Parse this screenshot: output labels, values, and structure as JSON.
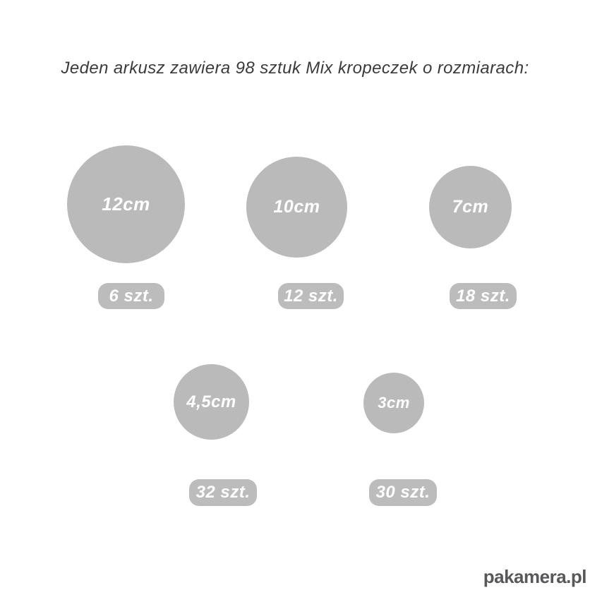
{
  "title": "Jeden arkusz zawiera 98 sztuk Mix kropeczek o rozmiarach:",
  "items": [
    {
      "size": "12cm",
      "count": "6 szt."
    },
    {
      "size": "10cm",
      "count": "12 szt."
    },
    {
      "size": "7cm",
      "count": "18 szt."
    },
    {
      "size": "4,5cm",
      "count": "32 szt."
    },
    {
      "size": "3cm",
      "count": "30 szt."
    }
  ],
  "total_pieces": "98",
  "watermark": "pakamera.pl",
  "colors": {
    "dot_fill": "#bababa",
    "badge_fill": "#bcbcbc",
    "label_text": "#ffffff",
    "title_text": "#3b3b3b",
    "watermark_text": "#58585a"
  }
}
